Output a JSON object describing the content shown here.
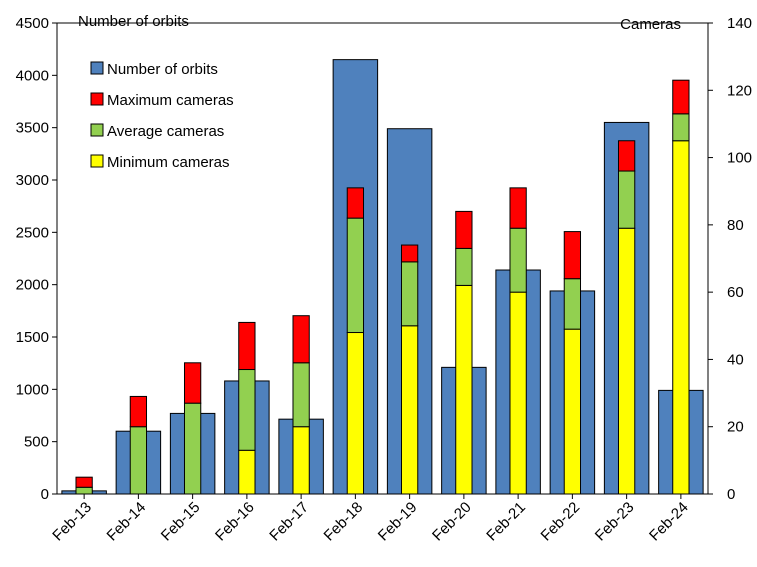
{
  "chart_data": {
    "type": "bar",
    "categories": [
      "Feb-13",
      "Feb-14",
      "Feb-15",
      "Feb-16",
      "Feb-17",
      "Feb-18",
      "Feb-19",
      "Feb-20",
      "Feb-21",
      "Feb-22",
      "Feb-23",
      "Feb-24"
    ],
    "left_axis": {
      "label": "Number of orbits",
      "ylim": [
        0,
        4500
      ],
      "ticks": [
        0,
        500,
        1000,
        1500,
        2000,
        2500,
        3000,
        3500,
        4000,
        4500
      ]
    },
    "right_axis": {
      "label": "Cameras",
      "ylim": [
        0,
        140
      ],
      "ticks": [
        0,
        20,
        40,
        60,
        80,
        100,
        120,
        140
      ]
    },
    "series": [
      {
        "name": "Number of orbits",
        "axis": "left",
        "color": "#4f81bd",
        "values": [
          30,
          600,
          770,
          1080,
          715,
          4150,
          3490,
          1210,
          2140,
          1940,
          3550,
          990
        ]
      },
      {
        "name": "Maximum cameras",
        "axis": "right",
        "color": "#ff0000",
        "values": [
          5,
          29,
          39,
          51,
          53,
          91,
          74,
          84,
          91,
          78,
          105,
          123
        ]
      },
      {
        "name": "Average cameras",
        "axis": "right",
        "color": "#92d050",
        "values": [
          2,
          20,
          27,
          37,
          39,
          82,
          69,
          73,
          79,
          64,
          96,
          113
        ]
      },
      {
        "name": "Minimum cameras",
        "axis": "right",
        "color": "#ffff00",
        "values": [
          0,
          0,
          0,
          13,
          20,
          48,
          50,
          62,
          60,
          49,
          79,
          105
        ]
      }
    ],
    "legend_position": "top-left",
    "grid": false
  }
}
